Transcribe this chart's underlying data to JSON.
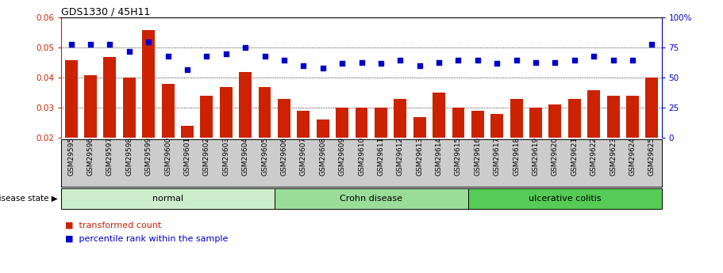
{
  "title": "GDS1330 / 45H11",
  "samples": [
    "GSM29595",
    "GSM29596",
    "GSM29597",
    "GSM29598",
    "GSM29599",
    "GSM29600",
    "GSM29601",
    "GSM29602",
    "GSM29603",
    "GSM29604",
    "GSM29605",
    "GSM29606",
    "GSM29607",
    "GSM29608",
    "GSM29609",
    "GSM29610",
    "GSM29611",
    "GSM29612",
    "GSM29613",
    "GSM29614",
    "GSM29615",
    "GSM29616",
    "GSM29617",
    "GSM29618",
    "GSM29619",
    "GSM29620",
    "GSM29621",
    "GSM29622",
    "GSM29623",
    "GSM29624",
    "GSM29625"
  ],
  "bar_values": [
    0.046,
    0.041,
    0.047,
    0.04,
    0.056,
    0.038,
    0.024,
    0.034,
    0.037,
    0.042,
    0.037,
    0.033,
    0.029,
    0.026,
    0.03,
    0.03,
    0.03,
    0.033,
    0.027,
    0.035,
    0.03,
    0.029,
    0.028,
    0.033,
    0.03,
    0.031,
    0.033,
    0.036,
    0.034,
    0.034,
    0.04
  ],
  "percentile_values": [
    78,
    78,
    78,
    72,
    80,
    68,
    57,
    68,
    70,
    75,
    68,
    65,
    60,
    58,
    62,
    63,
    62,
    65,
    60,
    63,
    65,
    65,
    62,
    65,
    63,
    63,
    65,
    68,
    65,
    65,
    78
  ],
  "bar_color": "#cc2200",
  "dot_color": "#0000cc",
  "ylim_left": [
    0.02,
    0.06
  ],
  "ylim_right": [
    0,
    100
  ],
  "yticks_left": [
    0.02,
    0.03,
    0.04,
    0.05,
    0.06
  ],
  "yticks_right": [
    0,
    25,
    50,
    75,
    100
  ],
  "groups": [
    {
      "label": "normal",
      "start": 0,
      "end": 11,
      "color": "#cceecc"
    },
    {
      "label": "Crohn disease",
      "start": 11,
      "end": 21,
      "color": "#99dd99"
    },
    {
      "label": "ulcerative colitis",
      "start": 21,
      "end": 31,
      "color": "#55cc55"
    }
  ],
  "legend_bar_label": "transformed count",
  "legend_dot_label": "percentile rank within the sample",
  "disease_state_label": "disease state",
  "sample_label_bg": "#cccccc",
  "plot_bg": "#ffffff",
  "fig_bg": "#ffffff"
}
